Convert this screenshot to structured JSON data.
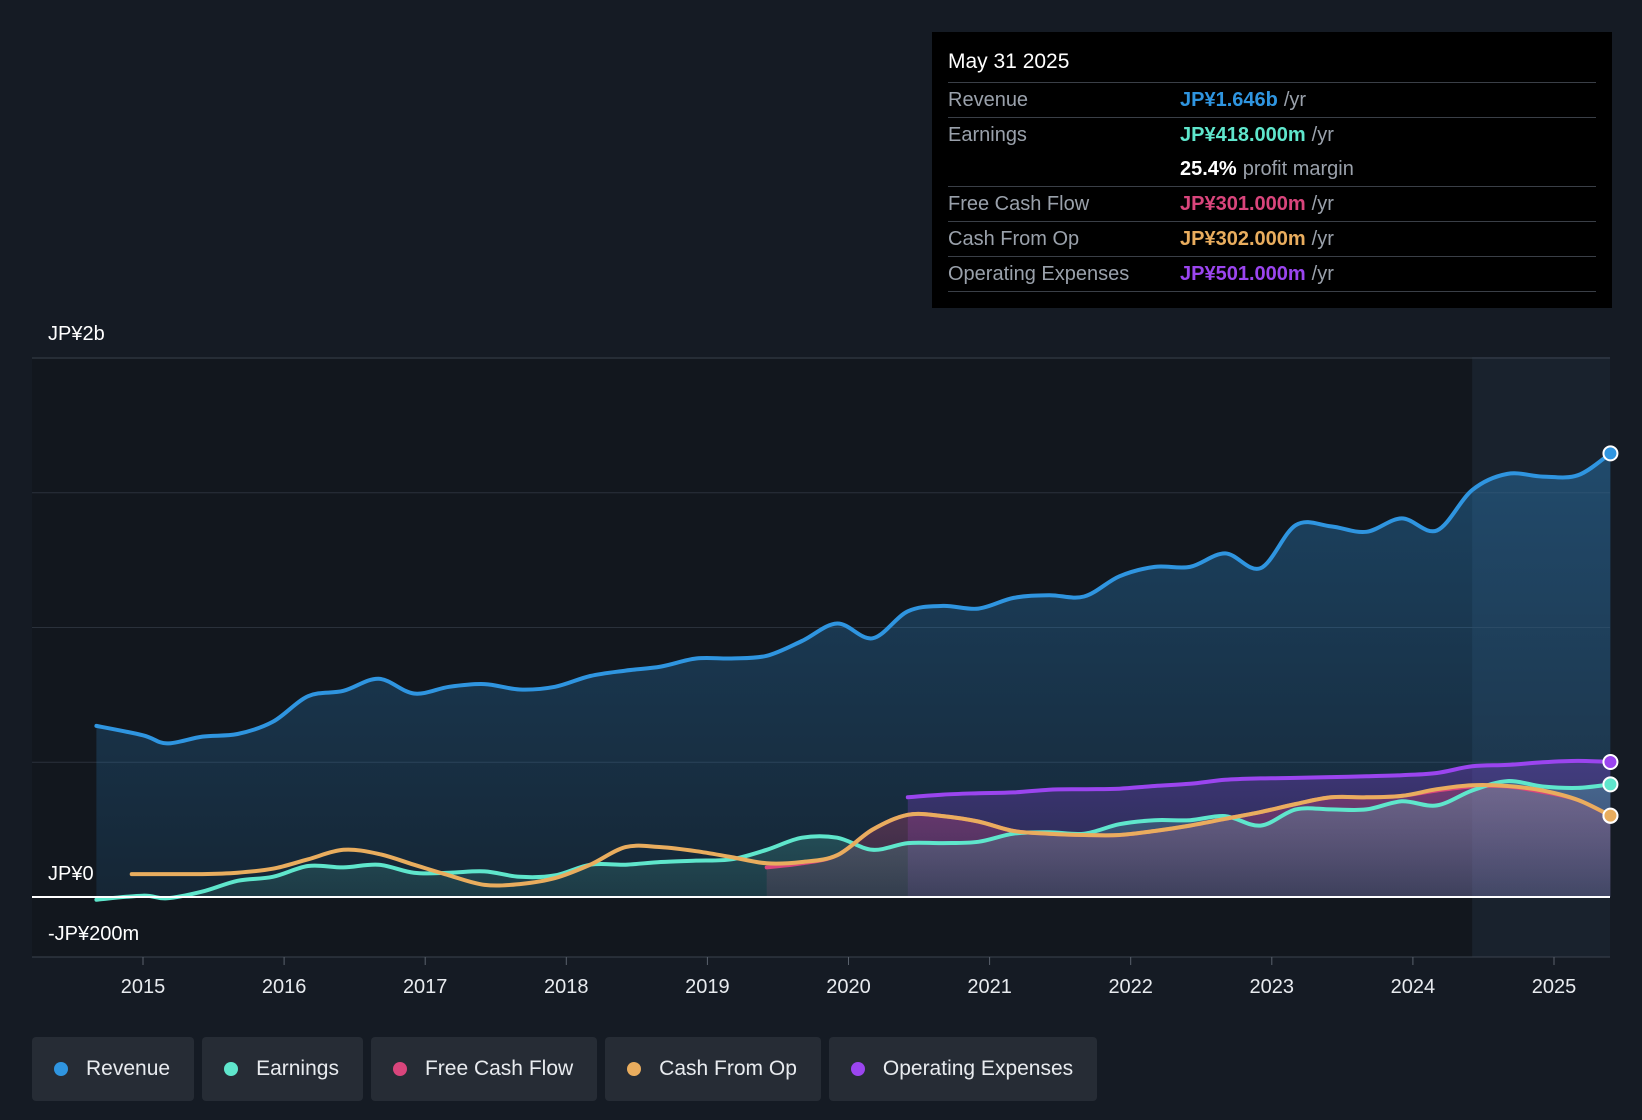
{
  "chart_data": {
    "type": "line",
    "x_axis_ticks": [
      "2015",
      "2016",
      "2017",
      "2018",
      "2019",
      "2020",
      "2021",
      "2022",
      "2023",
      "2024",
      "2025"
    ],
    "y_axis_labels": {
      "top": "JP¥2b",
      "zero": "JP¥0",
      "bottom": "-JP¥200m"
    },
    "ylim": [
      -200,
      2000
    ],
    "y_unit": "JP¥ millions",
    "xlim": [
      2014.0,
      2025.4
    ],
    "forecast_region_start": 2024.42,
    "series": [
      {
        "name": "Revenue",
        "color": "#2f95e0",
        "fill": true,
        "points": [
          [
            2014.67,
            635
          ],
          [
            2015.0,
            600
          ],
          [
            2015.17,
            570
          ],
          [
            2015.42,
            595
          ],
          [
            2015.67,
            605
          ],
          [
            2015.92,
            650
          ],
          [
            2016.17,
            745
          ],
          [
            2016.42,
            765
          ],
          [
            2016.67,
            810
          ],
          [
            2016.92,
            755
          ],
          [
            2017.17,
            780
          ],
          [
            2017.42,
            790
          ],
          [
            2017.67,
            770
          ],
          [
            2017.92,
            780
          ],
          [
            2018.17,
            820
          ],
          [
            2018.42,
            840
          ],
          [
            2018.67,
            855
          ],
          [
            2018.92,
            885
          ],
          [
            2019.17,
            885
          ],
          [
            2019.42,
            895
          ],
          [
            2019.67,
            950
          ],
          [
            2019.92,
            1015
          ],
          [
            2020.17,
            960
          ],
          [
            2020.42,
            1060
          ],
          [
            2020.67,
            1080
          ],
          [
            2020.92,
            1070
          ],
          [
            2021.17,
            1110
          ],
          [
            2021.42,
            1120
          ],
          [
            2021.67,
            1115
          ],
          [
            2021.92,
            1190
          ],
          [
            2022.17,
            1225
          ],
          [
            2022.42,
            1225
          ],
          [
            2022.67,
            1275
          ],
          [
            2022.92,
            1220
          ],
          [
            2023.17,
            1380
          ],
          [
            2023.42,
            1375
          ],
          [
            2023.67,
            1355
          ],
          [
            2023.92,
            1405
          ],
          [
            2024.17,
            1360
          ],
          [
            2024.42,
            1510
          ],
          [
            2024.67,
            1570
          ],
          [
            2024.92,
            1560
          ],
          [
            2025.17,
            1565
          ],
          [
            2025.4,
            1646
          ]
        ]
      },
      {
        "name": "Earnings",
        "color": "#5fe6cc",
        "fill": true,
        "points": [
          [
            2014.67,
            -10
          ],
          [
            2015.0,
            5
          ],
          [
            2015.17,
            -5
          ],
          [
            2015.42,
            20
          ],
          [
            2015.67,
            60
          ],
          [
            2015.92,
            75
          ],
          [
            2016.17,
            115
          ],
          [
            2016.42,
            110
          ],
          [
            2016.67,
            120
          ],
          [
            2016.92,
            90
          ],
          [
            2017.17,
            90
          ],
          [
            2017.42,
            95
          ],
          [
            2017.67,
            75
          ],
          [
            2017.92,
            80
          ],
          [
            2018.17,
            120
          ],
          [
            2018.42,
            120
          ],
          [
            2018.67,
            130
          ],
          [
            2018.92,
            135
          ],
          [
            2019.17,
            140
          ],
          [
            2019.42,
            175
          ],
          [
            2019.67,
            220
          ],
          [
            2019.92,
            220
          ],
          [
            2020.17,
            175
          ],
          [
            2020.42,
            200
          ],
          [
            2020.67,
            200
          ],
          [
            2020.92,
            205
          ],
          [
            2021.17,
            235
          ],
          [
            2021.42,
            240
          ],
          [
            2021.67,
            235
          ],
          [
            2021.92,
            270
          ],
          [
            2022.17,
            285
          ],
          [
            2022.42,
            285
          ],
          [
            2022.67,
            300
          ],
          [
            2022.92,
            265
          ],
          [
            2023.17,
            325
          ],
          [
            2023.42,
            325
          ],
          [
            2023.67,
            325
          ],
          [
            2023.92,
            355
          ],
          [
            2024.17,
            340
          ],
          [
            2024.42,
            395
          ],
          [
            2024.67,
            430
          ],
          [
            2024.92,
            410
          ],
          [
            2025.17,
            405
          ],
          [
            2025.4,
            418
          ]
        ]
      },
      {
        "name": "Free Cash Flow",
        "color": "#d9457c",
        "fill": true,
        "points": [
          [
            2019.42,
            110
          ],
          [
            2019.67,
            125
          ],
          [
            2019.92,
            155
          ],
          [
            2020.17,
            250
          ],
          [
            2020.42,
            305
          ],
          [
            2020.67,
            300
          ],
          [
            2020.92,
            280
          ],
          [
            2021.17,
            245
          ],
          [
            2021.42,
            235
          ],
          [
            2021.67,
            230
          ],
          [
            2021.92,
            230
          ],
          [
            2022.17,
            245
          ],
          [
            2022.42,
            265
          ],
          [
            2022.67,
            290
          ],
          [
            2022.92,
            315
          ],
          [
            2023.17,
            345
          ],
          [
            2023.42,
            370
          ],
          [
            2023.67,
            370
          ],
          [
            2023.92,
            375
          ],
          [
            2024.17,
            395
          ],
          [
            2024.42,
            410
          ],
          [
            2024.67,
            410
          ],
          [
            2024.92,
            390
          ],
          [
            2025.17,
            360
          ],
          [
            2025.4,
            301
          ]
        ]
      },
      {
        "name": "Cash From Op",
        "color": "#e9ad5e",
        "fill": false,
        "points": [
          [
            2014.92,
            85
          ],
          [
            2015.17,
            85
          ],
          [
            2015.42,
            85
          ],
          [
            2015.67,
            90
          ],
          [
            2015.92,
            105
          ],
          [
            2016.17,
            140
          ],
          [
            2016.42,
            175
          ],
          [
            2016.67,
            160
          ],
          [
            2016.92,
            120
          ],
          [
            2017.17,
            80
          ],
          [
            2017.42,
            45
          ],
          [
            2017.67,
            48
          ],
          [
            2017.92,
            70
          ],
          [
            2018.17,
            120
          ],
          [
            2018.42,
            185
          ],
          [
            2018.67,
            185
          ],
          [
            2018.92,
            170
          ],
          [
            2019.17,
            148
          ],
          [
            2019.42,
            125
          ],
          [
            2019.67,
            130
          ],
          [
            2019.92,
            155
          ],
          [
            2020.17,
            250
          ],
          [
            2020.42,
            305
          ],
          [
            2020.67,
            300
          ],
          [
            2020.92,
            280
          ],
          [
            2021.17,
            245
          ],
          [
            2021.42,
            235
          ],
          [
            2021.67,
            230
          ],
          [
            2021.92,
            230
          ],
          [
            2022.17,
            245
          ],
          [
            2022.42,
            265
          ],
          [
            2022.67,
            290
          ],
          [
            2022.92,
            315
          ],
          [
            2023.17,
            345
          ],
          [
            2023.42,
            370
          ],
          [
            2023.67,
            370
          ],
          [
            2023.92,
            375
          ],
          [
            2024.17,
            400
          ],
          [
            2024.42,
            415
          ],
          [
            2024.67,
            412
          ],
          [
            2024.92,
            395
          ],
          [
            2025.17,
            360
          ],
          [
            2025.4,
            302
          ]
        ]
      },
      {
        "name": "Operating Expenses",
        "color": "#9b45ef",
        "fill": true,
        "points": [
          [
            2020.42,
            370
          ],
          [
            2020.67,
            380
          ],
          [
            2020.92,
            385
          ],
          [
            2021.17,
            388
          ],
          [
            2021.42,
            398
          ],
          [
            2021.67,
            400
          ],
          [
            2021.92,
            402
          ],
          [
            2022.17,
            412
          ],
          [
            2022.42,
            420
          ],
          [
            2022.67,
            435
          ],
          [
            2022.92,
            440
          ],
          [
            2023.17,
            442
          ],
          [
            2023.42,
            445
          ],
          [
            2023.67,
            448
          ],
          [
            2023.92,
            452
          ],
          [
            2024.17,
            460
          ],
          [
            2024.42,
            485
          ],
          [
            2024.67,
            490
          ],
          [
            2024.92,
            500
          ],
          [
            2025.17,
            505
          ],
          [
            2025.4,
            501
          ]
        ]
      }
    ]
  },
  "tooltip": {
    "date": "May 31 2025",
    "rows": [
      {
        "label": "Revenue",
        "value": "JP¥1.646b",
        "unit": "/yr",
        "color": "#2f95e0"
      },
      {
        "label": "Earnings",
        "value": "JP¥418.000m",
        "unit": "/yr",
        "color": "#5fe6cc"
      },
      {
        "label": "",
        "value": "25.4%",
        "unit": "profit margin",
        "color": "#ffffff"
      },
      {
        "label": "Free Cash Flow",
        "value": "JP¥301.000m",
        "unit": "/yr",
        "color": "#d9457c"
      },
      {
        "label": "Cash From Op",
        "value": "JP¥302.000m",
        "unit": "/yr",
        "color": "#e9ad5e"
      },
      {
        "label": "Operating Expenses",
        "value": "JP¥501.000m",
        "unit": "/yr",
        "color": "#9b45ef"
      }
    ]
  },
  "legend": [
    {
      "label": "Revenue",
      "color": "#2f95e0"
    },
    {
      "label": "Earnings",
      "color": "#5fe6cc"
    },
    {
      "label": "Free Cash Flow",
      "color": "#d9457c"
    },
    {
      "label": "Cash From Op",
      "color": "#e9ad5e"
    },
    {
      "label": "Operating Expenses",
      "color": "#9b45ef"
    }
  ]
}
